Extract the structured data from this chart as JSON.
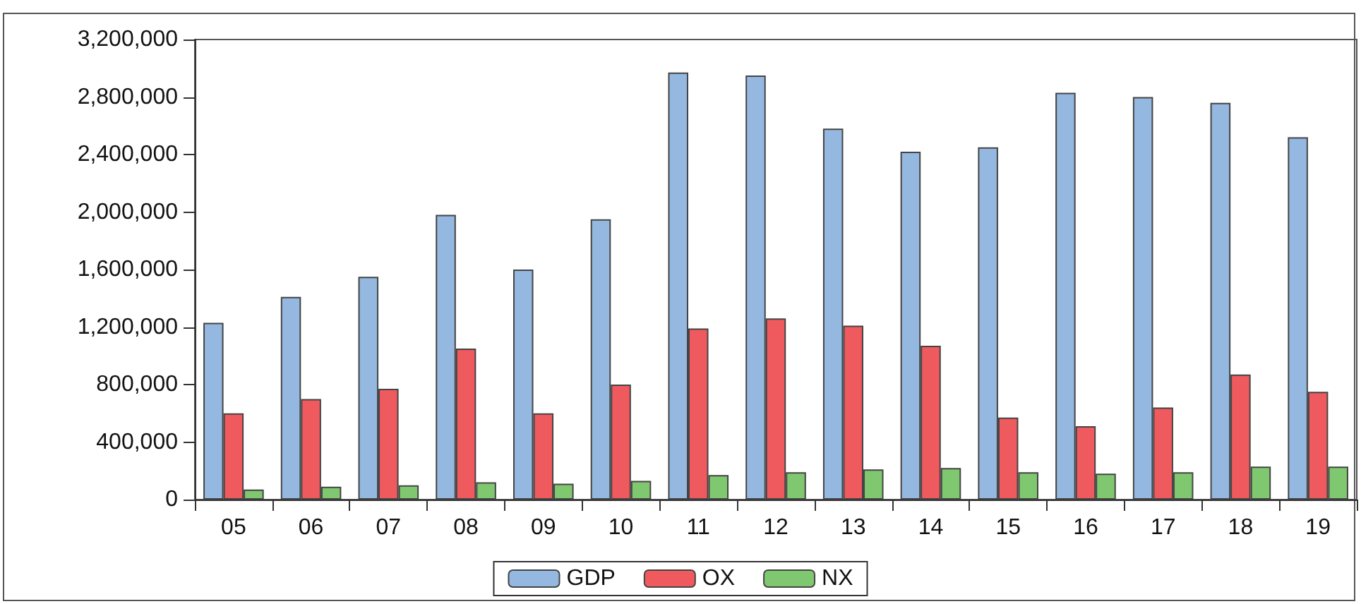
{
  "chart_data": {
    "type": "bar",
    "categories": [
      "05",
      "06",
      "07",
      "08",
      "09",
      "10",
      "11",
      "12",
      "13",
      "14",
      "15",
      "16",
      "17",
      "18",
      "19"
    ],
    "series": [
      {
        "name": "GDP",
        "color": "#95b8e0",
        "values": [
          1230000,
          1410000,
          1550000,
          1980000,
          1600000,
          1950000,
          2970000,
          2950000,
          2580000,
          2420000,
          2450000,
          2830000,
          2800000,
          2760000,
          2520000
        ]
      },
      {
        "name": "OX",
        "color": "#ef5a5f",
        "values": [
          600000,
          700000,
          770000,
          1050000,
          600000,
          800000,
          1190000,
          1260000,
          1210000,
          1070000,
          570000,
          510000,
          640000,
          870000,
          750000
        ]
      },
      {
        "name": "NX",
        "color": "#80c870",
        "values": [
          70000,
          90000,
          100000,
          120000,
          110000,
          130000,
          170000,
          190000,
          210000,
          220000,
          190000,
          180000,
          190000,
          230000,
          230000
        ]
      }
    ],
    "ylim": [
      0,
      3200000
    ],
    "yticks": [
      0,
      {
        "value": 400000,
        "label": "400,000"
      },
      {
        "value": 800000,
        "label": "800,000"
      },
      {
        "value": 1200000,
        "label": "1,200,000"
      },
      {
        "value": 1600000,
        "label": "1,600,000"
      },
      {
        "value": 2000000,
        "label": "2,000,000"
      },
      {
        "value": 2400000,
        "label": "2,400,000"
      },
      {
        "value": 2800000,
        "label": "2,800,000"
      },
      {
        "value": 3200000,
        "label": "3,200,000"
      }
    ],
    "grid": false,
    "legend": "bottom"
  }
}
